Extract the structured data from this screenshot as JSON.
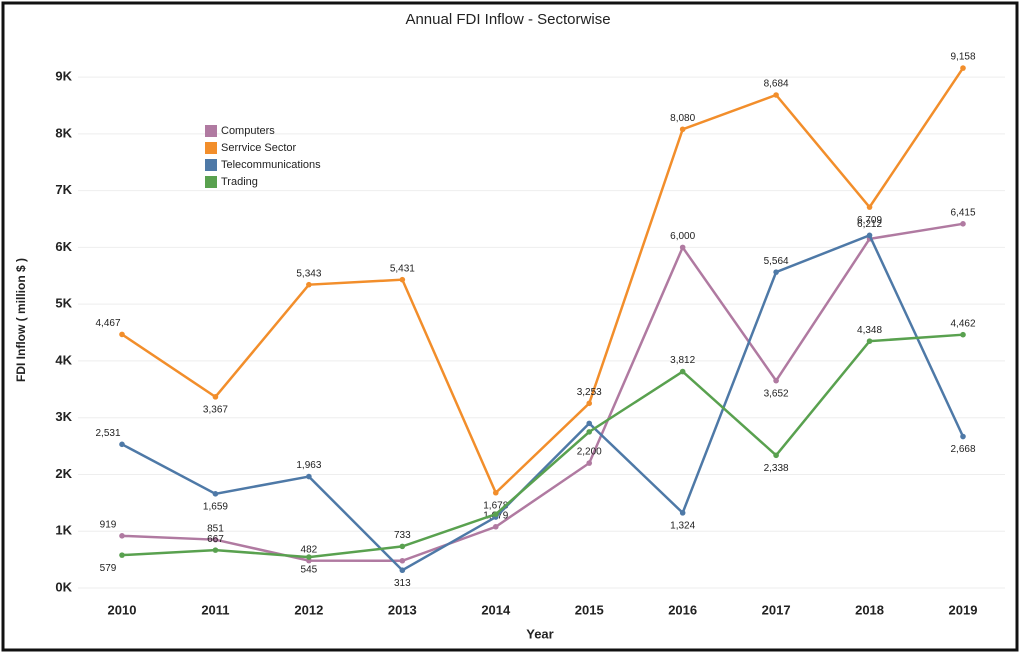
{
  "chart_data": {
    "type": "line",
    "title": "Annual FDI Inflow - Sectorwise",
    "x_label": "Year",
    "y_label": "FDI Inflow ( million $ )",
    "categories": [
      "2010",
      "2011",
      "2012",
      "2013",
      "2014",
      "2015",
      "2016",
      "2017",
      "2018",
      "2019"
    ],
    "ylim": [
      0,
      9600
    ],
    "yticks": [
      {
        "value": 0,
        "label": "0K"
      },
      {
        "value": 1000,
        "label": "1K"
      },
      {
        "value": 2000,
        "label": "2K"
      },
      {
        "value": 3000,
        "label": "3K"
      },
      {
        "value": 4000,
        "label": "4K"
      },
      {
        "value": 5000,
        "label": "5K"
      },
      {
        "value": 6000,
        "label": "6K"
      },
      {
        "value": 7000,
        "label": "7K"
      },
      {
        "value": 8000,
        "label": "8K"
      },
      {
        "value": 9000,
        "label": "9K"
      }
    ],
    "grid": true,
    "legend": "upper-left",
    "series": [
      {
        "name": "Computers",
        "color": "#b07aa1",
        "values": [
          919,
          851,
          482,
          480,
          1079,
          2200,
          6000,
          3652,
          6150,
          6415
        ],
        "value_labels": [
          "919",
          "851",
          "482",
          null,
          "1,079",
          "2,200",
          "6,000",
          "3,652",
          null,
          "6,415"
        ]
      },
      {
        "name": "Serrvice Sector",
        "color": "#f28e2b",
        "values": [
          4467,
          3367,
          5343,
          5431,
          1678,
          3253,
          8080,
          8684,
          6709,
          9158
        ],
        "value_labels": [
          "4,467",
          "3,367",
          "5,343",
          "5,431",
          "1,678",
          "3,253",
          "8,080",
          "8,684",
          "6,709",
          "9,158"
        ]
      },
      {
        "name": "Telecommunications",
        "color": "#4e79a7",
        "values": [
          2531,
          1659,
          1963,
          313,
          1250,
          2900,
          1324,
          5564,
          6212,
          2668
        ],
        "value_labels": [
          "2,531",
          "1,659",
          "1,963",
          "313",
          null,
          null,
          "1,324",
          "5,564",
          "6,212",
          "2,668"
        ]
      },
      {
        "name": "Trading",
        "color": "#59a14f",
        "values": [
          579,
          667,
          545,
          733,
          1300,
          2750,
          3812,
          2338,
          4348,
          4462
        ],
        "value_labels": [
          "579",
          "667",
          "545",
          "733",
          null,
          null,
          "3,812",
          "2,338",
          "4,348",
          "4,462"
        ]
      }
    ]
  }
}
